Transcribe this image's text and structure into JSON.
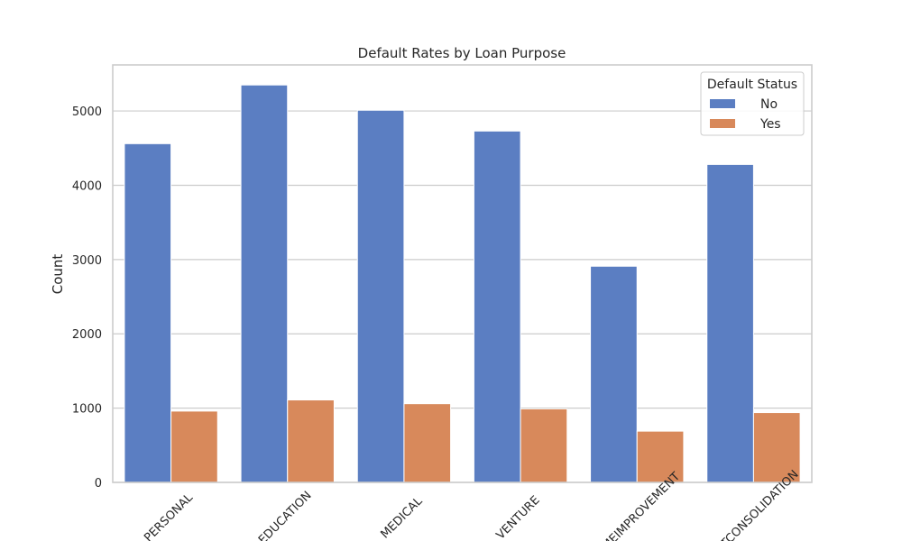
{
  "chart_data": {
    "type": "bar",
    "title": "Default Rates by Loan Purpose",
    "xlabel": "",
    "ylabel": "Count",
    "categories": [
      "PERSONAL",
      "EDUCATION",
      "MEDICAL",
      "VENTURE",
      "HOMEIMPROVEMENT",
      "DEBTCONSOLIDATION"
    ],
    "series": [
      {
        "name": "No",
        "color": "#5b7ec2",
        "values": [
          4560,
          5350,
          5010,
          4730,
          2910,
          4280
        ]
      },
      {
        "name": "Yes",
        "color": "#d8895b",
        "values": [
          960,
          1110,
          1060,
          990,
          690,
          940
        ]
      }
    ],
    "ylim": [
      0,
      5620
    ],
    "yticks": [
      0,
      1000,
      2000,
      3000,
      4000,
      5000
    ],
    "grid": true,
    "legend": {
      "title": "Default Status",
      "position": "top-right"
    }
  }
}
